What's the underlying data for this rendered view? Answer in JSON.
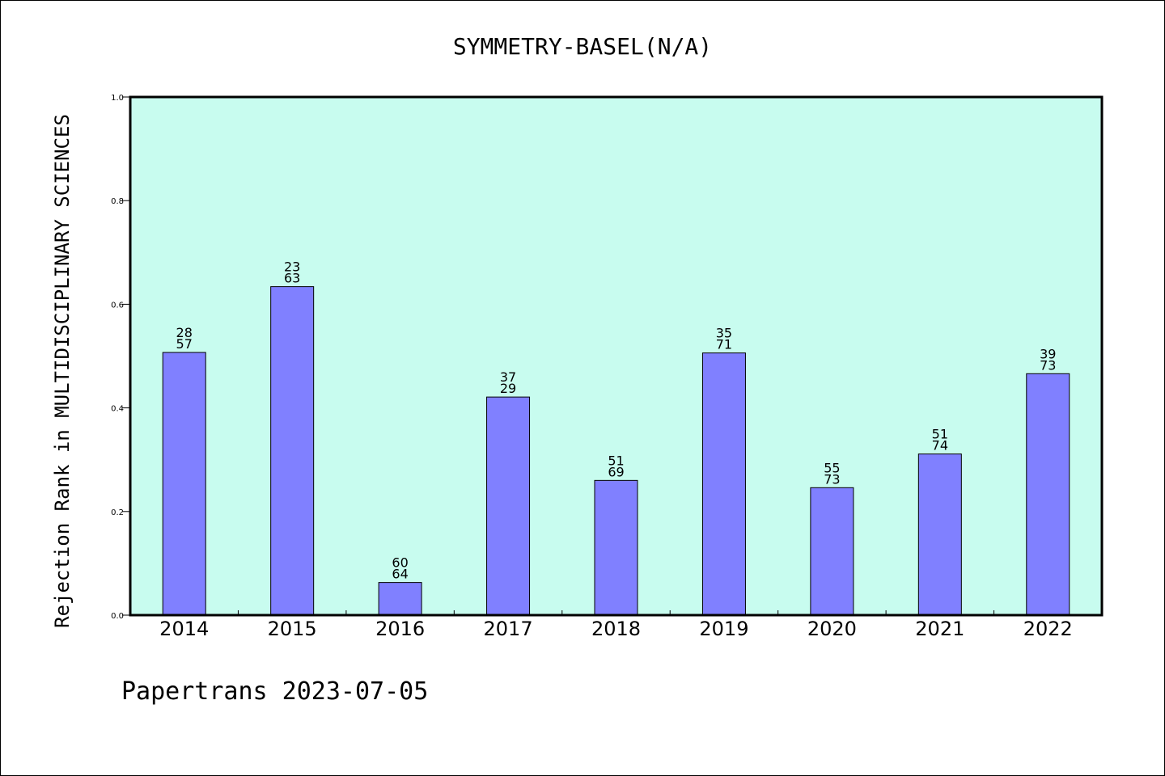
{
  "chart_data": {
    "type": "bar",
    "title": "SYMMETRY-BASEL(N/A)",
    "ylabel": "Rejection Rank in MULTIDISCIPLINARY SCIENCES",
    "xlabel": "",
    "categories": [
      "2014",
      "2015",
      "2016",
      "2017",
      "2018",
      "2019",
      "2020",
      "2021",
      "2022"
    ],
    "values": [
      0.507,
      0.634,
      0.063,
      0.421,
      0.26,
      0.506,
      0.246,
      0.311,
      0.466
    ],
    "bar_labels": [
      [
        "28",
        "57"
      ],
      [
        "23",
        "63"
      ],
      [
        "60",
        "64"
      ],
      [
        "37",
        "29"
      ],
      [
        "51",
        "69"
      ],
      [
        "35",
        "71"
      ],
      [
        "55",
        "73"
      ],
      [
        "51",
        "74"
      ],
      [
        "39",
        "73"
      ]
    ],
    "ylim": [
      0.0,
      1.0
    ],
    "yticks": [
      "0.0",
      "0.2",
      "0.4",
      "0.6",
      "0.8",
      "1.0"
    ],
    "grid": false,
    "legend": "none",
    "colors": {
      "plot_background": "#c8fcef",
      "bar_fill": "#8080ff",
      "bar_stroke": "#000000"
    }
  },
  "footer": {
    "text": "Papertrans 2023-07-05"
  }
}
